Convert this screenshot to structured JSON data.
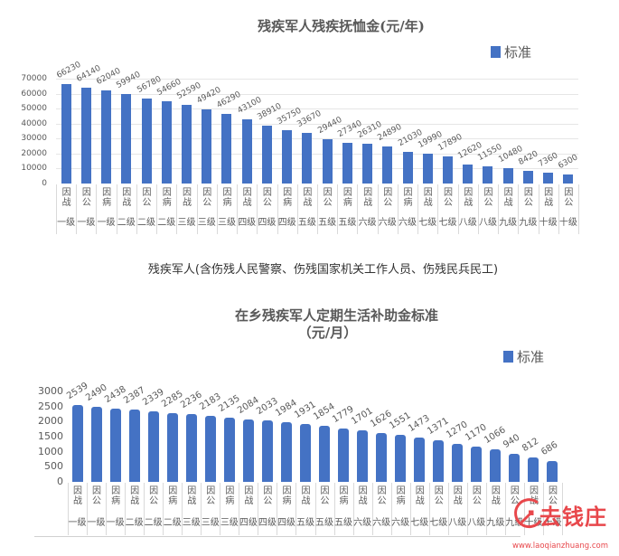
{
  "chart_data": [
    {
      "type": "bar",
      "title": "残疾军人残疾抚恤金(元/年)",
      "xlabel": "",
      "ylabel": "",
      "ylim": [
        0,
        70000
      ],
      "yticks": [
        "0",
        "10000",
        "20000",
        "30000",
        "40000",
        "50000",
        "60000",
        "70000"
      ],
      "grid": true,
      "legend_position": "top-right",
      "series": [
        {
          "name": "标准",
          "color": "#4472c4",
          "values": [
            66230,
            64140,
            62040,
            59940,
            56780,
            54660,
            52590,
            49420,
            46290,
            43100,
            38910,
            35750,
            33670,
            29440,
            27340,
            26310,
            24890,
            21030,
            19990,
            17890,
            12620,
            11550,
            10480,
            8420,
            7360,
            6300
          ]
        }
      ],
      "categories": [
        {
          "cause": "因战",
          "level": "一级"
        },
        {
          "cause": "因公",
          "level": "一级"
        },
        {
          "cause": "因病",
          "level": "一级"
        },
        {
          "cause": "因战",
          "level": "二级"
        },
        {
          "cause": "因公",
          "level": "二级"
        },
        {
          "cause": "因病",
          "level": "二级"
        },
        {
          "cause": "因战",
          "level": "三级"
        },
        {
          "cause": "因公",
          "level": "三级"
        },
        {
          "cause": "因病",
          "level": "三级"
        },
        {
          "cause": "因战",
          "level": "四级"
        },
        {
          "cause": "因公",
          "level": "四级"
        },
        {
          "cause": "因病",
          "level": "四级"
        },
        {
          "cause": "因战",
          "level": "五级"
        },
        {
          "cause": "因公",
          "level": "五级"
        },
        {
          "cause": "因病",
          "level": "五级"
        },
        {
          "cause": "因战",
          "level": "六级"
        },
        {
          "cause": "因公",
          "level": "六级"
        },
        {
          "cause": "因病",
          "level": "六级"
        },
        {
          "cause": "因战",
          "level": "七级"
        },
        {
          "cause": "因公",
          "level": "七级"
        },
        {
          "cause": "因战",
          "level": "八级"
        },
        {
          "cause": "因公",
          "level": "八级"
        },
        {
          "cause": "因战",
          "level": "九级"
        },
        {
          "cause": "因公",
          "level": "九级"
        },
        {
          "cause": "因战",
          "level": "十级"
        },
        {
          "cause": "因公",
          "level": "十级"
        }
      ]
    },
    {
      "type": "bar",
      "title": "在乡残疾军人定期生活补助金标准",
      "subtitle": "（元/月）",
      "xlabel": "",
      "ylabel": "",
      "ylim": [
        0,
        3000
      ],
      "yticks": [
        "0",
        "500",
        "1000",
        "1500",
        "2000",
        "2500",
        "3000"
      ],
      "grid": false,
      "legend_position": "top-right",
      "series": [
        {
          "name": "标准",
          "color": "#4472c4",
          "values": [
            2539,
            2490,
            2438,
            2387,
            2339,
            2285,
            2236,
            2183,
            2135,
            2084,
            2033,
            1984,
            1931,
            1854,
            1779,
            1701,
            1626,
            1551,
            1473,
            1371,
            1270,
            1170,
            1066,
            940,
            812,
            686
          ]
        }
      ],
      "categories": [
        {
          "cause": "因战",
          "level": "一级"
        },
        {
          "cause": "因公",
          "level": "一级"
        },
        {
          "cause": "因病",
          "level": "一级"
        },
        {
          "cause": "因战",
          "level": "二级"
        },
        {
          "cause": "因公",
          "level": "二级"
        },
        {
          "cause": "因病",
          "level": "二级"
        },
        {
          "cause": "因战",
          "level": "三级"
        },
        {
          "cause": "因公",
          "level": "三级"
        },
        {
          "cause": "因病",
          "level": "三级"
        },
        {
          "cause": "因战",
          "level": "四级"
        },
        {
          "cause": "因公",
          "level": "四级"
        },
        {
          "cause": "因病",
          "level": "四级"
        },
        {
          "cause": "因战",
          "level": "五级"
        },
        {
          "cause": "因公",
          "level": "五级"
        },
        {
          "cause": "因病",
          "level": "五级"
        },
        {
          "cause": "因战",
          "level": "六级"
        },
        {
          "cause": "因公",
          "level": "六级"
        },
        {
          "cause": "因病",
          "level": "六级"
        },
        {
          "cause": "因战",
          "level": "七级"
        },
        {
          "cause": "因公",
          "level": "七级"
        },
        {
          "cause": "因战",
          "level": "八级"
        },
        {
          "cause": "因公",
          "level": "八级"
        },
        {
          "cause": "因战",
          "level": "九级"
        },
        {
          "cause": "因公",
          "level": "九级"
        },
        {
          "cause": "因战",
          "level": "十级"
        },
        {
          "cause": "因公",
          "level": "十级"
        }
      ]
    }
  ],
  "page": {
    "chart1_title": "残疾军人残疾抚恤金(元/年)",
    "chart1_legend": "标准",
    "note": "残疾军人(含伤残人民警察、伤残国家机关工作人员、伤残民兵民工)",
    "chart2_title": "在乡残疾军人定期生活补助金标准",
    "chart2_subtitle": "（元/月）",
    "chart2_legend": "标准",
    "watermark_text": "去钱庄",
    "watermark_url": "www.laoqianzhuang.com"
  },
  "colors": {
    "bar": "#4472c4",
    "watermark": "#e8474b"
  }
}
